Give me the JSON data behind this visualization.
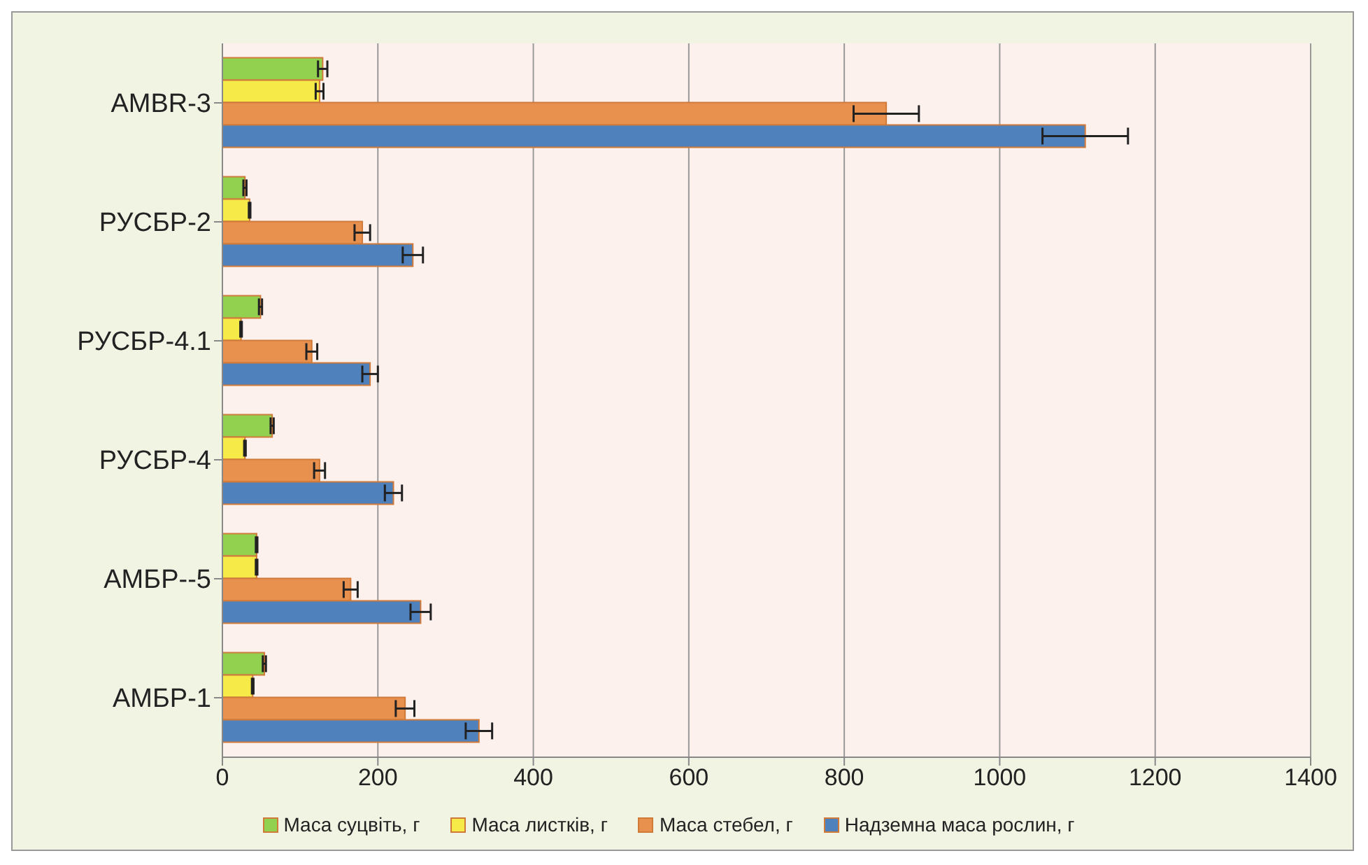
{
  "chart_data": {
    "type": "bar",
    "orientation": "horizontal",
    "categories": [
      "AMBR-3",
      "РУСБР-2",
      "РУСБР-4.1",
      "РУСБР-4",
      "АМБР--5",
      "АМБР-1"
    ],
    "series": [
      {
        "name": "Маса суцвіть, г",
        "color": "#92d050",
        "values": [
          129,
          29,
          49,
          64,
          44,
          54
        ],
        "errors": [
          6,
          2,
          2,
          2,
          1,
          2
        ]
      },
      {
        "name": "Маса листків, г",
        "color": "#f5ea48",
        "values": [
          125,
          35,
          24,
          29,
          44,
          39
        ],
        "errors": [
          5,
          1,
          1,
          1,
          1,
          1
        ]
      },
      {
        "name": "Маса стебел, г",
        "color": "#e8904e",
        "values": [
          854,
          180,
          115,
          125,
          165,
          235
        ],
        "errors": [
          42,
          10,
          7,
          7,
          9,
          12
        ]
      },
      {
        "name": "Надземна маса рослин, г",
        "color": "#4f81bd",
        "values": [
          1110,
          245,
          190,
          220,
          255,
          330
        ],
        "errors": [
          55,
          13,
          10,
          11,
          13,
          17
        ]
      }
    ],
    "xlim": [
      0,
      1400
    ],
    "xticks": [
      0,
      200,
      400,
      600,
      800,
      1000,
      1200,
      1400
    ],
    "grid": "x",
    "legend": "bottom"
  }
}
